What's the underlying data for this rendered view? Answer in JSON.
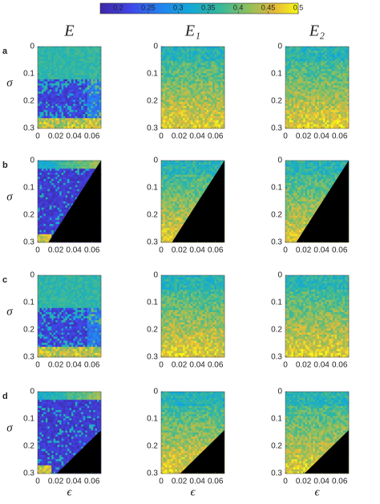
{
  "chart_data": {
    "type": "heatmap",
    "colorbar": {
      "lim": [
        0.17,
        0.5
      ],
      "ticks": [
        0.2,
        0.25,
        0.3,
        0.35,
        0.4,
        0.45,
        0.5
      ]
    },
    "column_titles": [
      "E",
      "E₁",
      "E₂"
    ],
    "row_labels": [
      "a",
      "b",
      "c",
      "d"
    ],
    "xlabel": "ϵ",
    "ylabel": "σ",
    "xlim": [
      0,
      0.07
    ],
    "ylim": [
      0,
      0.3
    ],
    "xticks": [
      0,
      0.02,
      0.04,
      0.06
    ],
    "yticks": [
      0,
      0.1,
      0.2,
      0.3
    ]
  }
}
